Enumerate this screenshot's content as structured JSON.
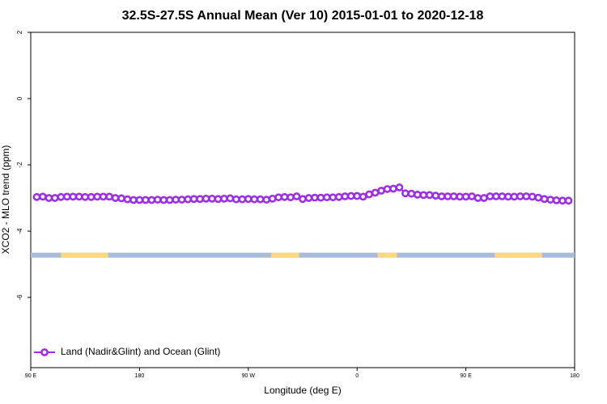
{
  "chart_data": {
    "type": "line",
    "title": "32.5S-27.5S Annual Mean (Ver 10)   2015-01-01 to 2020-12-18",
    "x_label": "Longitude (deg E)",
    "y_label": "XCO2 - MLO trend (ppm)",
    "xlim": [
      90,
      540
    ],
    "xticks": [
      {
        "value": 90,
        "label": "90 E"
      },
      {
        "value": 180,
        "label": "180"
      },
      {
        "value": 270,
        "label": "90 W"
      },
      {
        "value": 360,
        "label": "0"
      },
      {
        "value": 450,
        "label": "90 E"
      },
      {
        "value": 540,
        "label": "180"
      }
    ],
    "ylim": [
      -8.12,
      2
    ],
    "yticks": [
      -6,
      -4,
      -2,
      0,
      2
    ],
    "legend": "bottom-left",
    "x": [
      95,
      100,
      105,
      110,
      115,
      120,
      125,
      130,
      135,
      140,
      145,
      150,
      155,
      160,
      165,
      170,
      175,
      180,
      185,
      190,
      195,
      200,
      205,
      210,
      215,
      220,
      225,
      230,
      235,
      240,
      245,
      250,
      255,
      260,
      265,
      270,
      275,
      280,
      285,
      290,
      295,
      300,
      305,
      310,
      315,
      320,
      325,
      330,
      335,
      340,
      345,
      350,
      355,
      360,
      365,
      370,
      375,
      380,
      385,
      390,
      395,
      400,
      405,
      410,
      415,
      420,
      425,
      430,
      435,
      440,
      445,
      450,
      455,
      460,
      465,
      470,
      475,
      480,
      485,
      490,
      495,
      500,
      505,
      510,
      515,
      520,
      525,
      530,
      535
    ],
    "series": [
      {
        "name": "Land (Nadir&Glint) and Ocean (Glint)",
        "color": "#9b2fe6",
        "values": [
          -2.97,
          -2.96,
          -3.0,
          -3.0,
          -2.97,
          -2.96,
          -2.96,
          -2.96,
          -2.97,
          -2.97,
          -2.96,
          -2.96,
          -2.96,
          -3.0,
          -3.01,
          -3.04,
          -3.06,
          -3.06,
          -3.06,
          -3.06,
          -3.05,
          -3.06,
          -3.06,
          -3.05,
          -3.05,
          -3.04,
          -3.03,
          -3.03,
          -3.02,
          -3.02,
          -3.03,
          -3.02,
          -3.01,
          -3.04,
          -3.04,
          -3.03,
          -3.04,
          -3.04,
          -3.05,
          -3.02,
          -2.98,
          -2.97,
          -2.98,
          -2.95,
          -3.03,
          -3.0,
          -2.99,
          -2.99,
          -2.98,
          -2.98,
          -2.97,
          -2.95,
          -2.94,
          -2.94,
          -2.96,
          -2.89,
          -2.84,
          -2.78,
          -2.73,
          -2.72,
          -2.68,
          -2.86,
          -2.87,
          -2.9,
          -2.91,
          -2.91,
          -2.93,
          -2.95,
          -2.95,
          -2.95,
          -2.96,
          -2.96,
          -2.95,
          -3.0,
          -3.0,
          -2.95,
          -2.95,
          -2.95,
          -2.96,
          -2.96,
          -2.95,
          -2.95,
          -2.96,
          -2.99,
          -3.03,
          -3.05,
          -3.07,
          -3.08,
          -3.08
        ]
      }
    ],
    "surface_band": {
      "ylim": [
        -4.8,
        -4.65
      ],
      "color": "#a9bcd9",
      "land_color": "#ffd97a",
      "land": [
        [
          115,
          154
        ],
        [
          289,
          312
        ],
        [
          377,
          393
        ],
        [
          474,
          513
        ]
      ]
    }
  }
}
